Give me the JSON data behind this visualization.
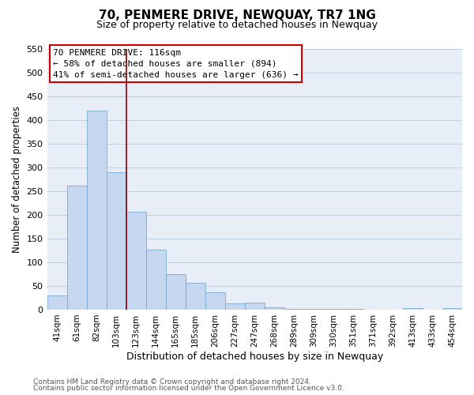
{
  "title": "70, PENMERE DRIVE, NEWQUAY, TR7 1NG",
  "subtitle": "Size of property relative to detached houses in Newquay",
  "xlabel": "Distribution of detached houses by size in Newquay",
  "ylabel": "Number of detached properties",
  "bar_color": "#c5d8ef",
  "bar_edge_color": "#7aabcf",
  "highlight_line_color": "#8b0000",
  "ylim": [
    0,
    550
  ],
  "yticks": [
    0,
    50,
    100,
    150,
    200,
    250,
    300,
    350,
    400,
    450,
    500,
    550
  ],
  "bins": [
    "41sqm",
    "61sqm",
    "82sqm",
    "103sqm",
    "123sqm",
    "144sqm",
    "165sqm",
    "185sqm",
    "206sqm",
    "227sqm",
    "247sqm",
    "268sqm",
    "289sqm",
    "309sqm",
    "330sqm",
    "351sqm",
    "371sqm",
    "392sqm",
    "413sqm",
    "433sqm",
    "454sqm"
  ],
  "values": [
    30,
    262,
    420,
    290,
    206,
    127,
    75,
    57,
    37,
    14,
    15,
    5,
    2,
    1,
    1,
    1,
    0,
    0,
    3,
    0,
    4
  ],
  "annotation_title": "70 PENMERE DRIVE: 116sqm",
  "annotation_line1": "← 58% of detached houses are smaller (894)",
  "annotation_line2": "41% of semi-detached houses are larger (636) →",
  "annotation_box_color": "white",
  "annotation_box_edge_color": "#cc0000",
  "footer_line1": "Contains HM Land Registry data © Crown copyright and database right 2024.",
  "footer_line2": "Contains public sector information licensed under the Open Government Licence v3.0.",
  "plot_bg_color": "#e8eef7",
  "fig_bg_color": "white",
  "grid_color": "#c0cede"
}
